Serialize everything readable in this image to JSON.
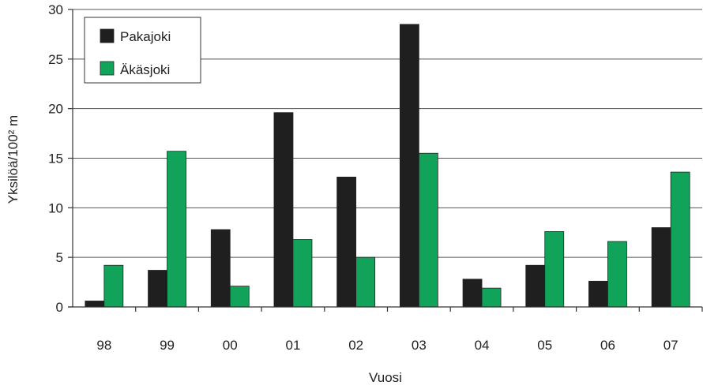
{
  "chart_data": {
    "type": "bar",
    "categories": [
      "98",
      "99",
      "00",
      "01",
      "02",
      "03",
      "04",
      "05",
      "06",
      "07"
    ],
    "series": [
      {
        "name": "Pakajoki",
        "color": "#1f1f1f",
        "values": [
          0.6,
          3.7,
          7.8,
          19.6,
          13.1,
          28.5,
          2.8,
          4.2,
          2.6,
          8.0
        ]
      },
      {
        "name": "Äkäsjoki",
        "color": "#12a35a",
        "values": [
          4.2,
          15.7,
          2.1,
          6.8,
          5.0,
          15.5,
          1.9,
          7.6,
          6.6,
          13.6
        ]
      }
    ],
    "title": "",
    "xlabel": "Vuosi",
    "ylabel": "Yksilöä/100² m",
    "ylim": [
      0,
      30
    ],
    "yticks": [
      "0",
      "5",
      "10",
      "15",
      "20",
      "25",
      "30"
    ],
    "grid": true,
    "legend_position": "top-left"
  }
}
